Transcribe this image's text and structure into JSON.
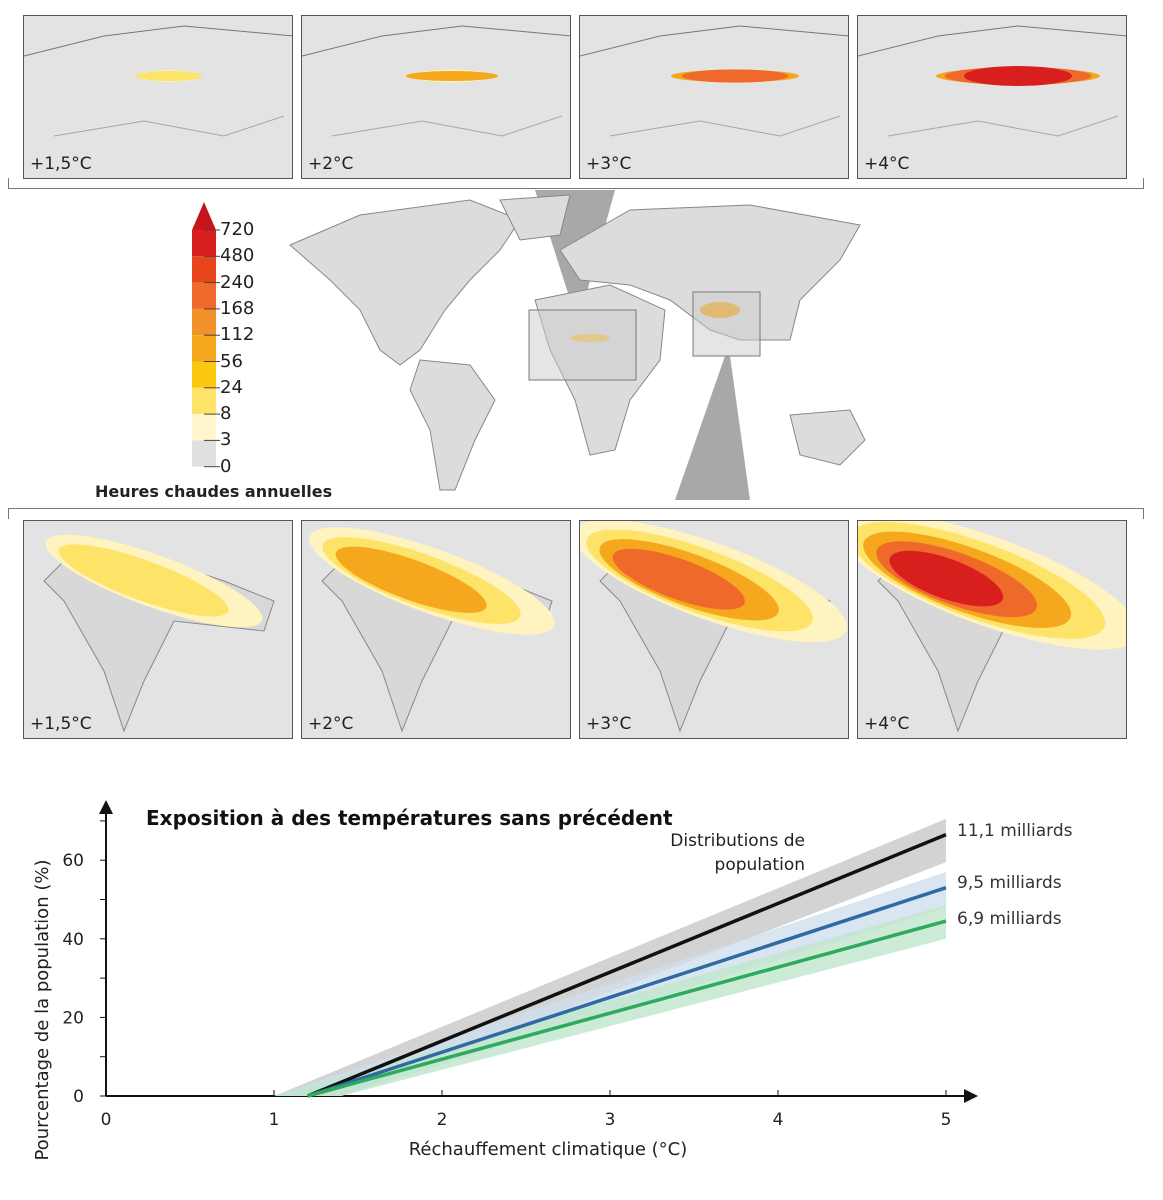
{
  "top_panels": [
    {
      "label": "+1,5°C",
      "level": 1
    },
    {
      "label": "+2°C",
      "level": 2
    },
    {
      "label": "+3°C",
      "level": 3
    },
    {
      "label": "+4°C",
      "level": 4
    }
  ],
  "bottom_panels": [
    {
      "label": "+1,5°C",
      "level": 1
    },
    {
      "label": "+2°C",
      "level": 2
    },
    {
      "label": "+3°C",
      "level": 3
    },
    {
      "label": "+4°C",
      "level": 4
    }
  ],
  "legend": {
    "title": "Heures chaudes annuelles",
    "ticks": [
      "720",
      "480",
      "240",
      "168",
      "112",
      "56",
      "24",
      "8",
      "3",
      "0"
    ],
    "colors": [
      "#d91e1e",
      "#e8461a",
      "#ef6a2a",
      "#f2922a",
      "#f5a81e",
      "#fcc80e",
      "#fde468",
      "#fff6cc",
      "#e0e0e0"
    ],
    "top_color": "#c8151b"
  },
  "chart_data": {
    "type": "line",
    "title": "Exposition à des températures sans précédent",
    "xlabel": "Réchauffement climatique (°C)",
    "ylabel": "Pourcentage de la population (%)",
    "xlim": [
      0,
      5
    ],
    "ylim": [
      0,
      70
    ],
    "xticks": [
      "0",
      "1",
      "2",
      "3",
      "4",
      "5"
    ],
    "yticks": [
      "0",
      "20",
      "40",
      "60"
    ],
    "annotation": "Distributions de population",
    "grid": false,
    "series": [
      {
        "name": "11,1 milliards",
        "color": "#111111",
        "band_color": "#c8c8c8",
        "x": [
          1.2,
          5
        ],
        "y": [
          0,
          66.5
        ],
        "band_low": [
          0,
          59.5
        ],
        "band_high": [
          0,
          70.5
        ]
      },
      {
        "name": "9,5 milliards",
        "color": "#2f6aa3",
        "band_color": "#cfdfee",
        "x": [
          1.2,
          5
        ],
        "y": [
          0,
          53
        ],
        "band_low": [
          0,
          48
        ],
        "band_high": [
          0,
          57
        ]
      },
      {
        "name": "6,9 milliards",
        "color": "#2eaa5c",
        "band_color": "#bfe6cc",
        "x": [
          1.2,
          5
        ],
        "y": [
          0,
          44.5
        ],
        "band_low": [
          0,
          40
        ],
        "band_high": [
          0,
          48.5
        ]
      }
    ]
  }
}
